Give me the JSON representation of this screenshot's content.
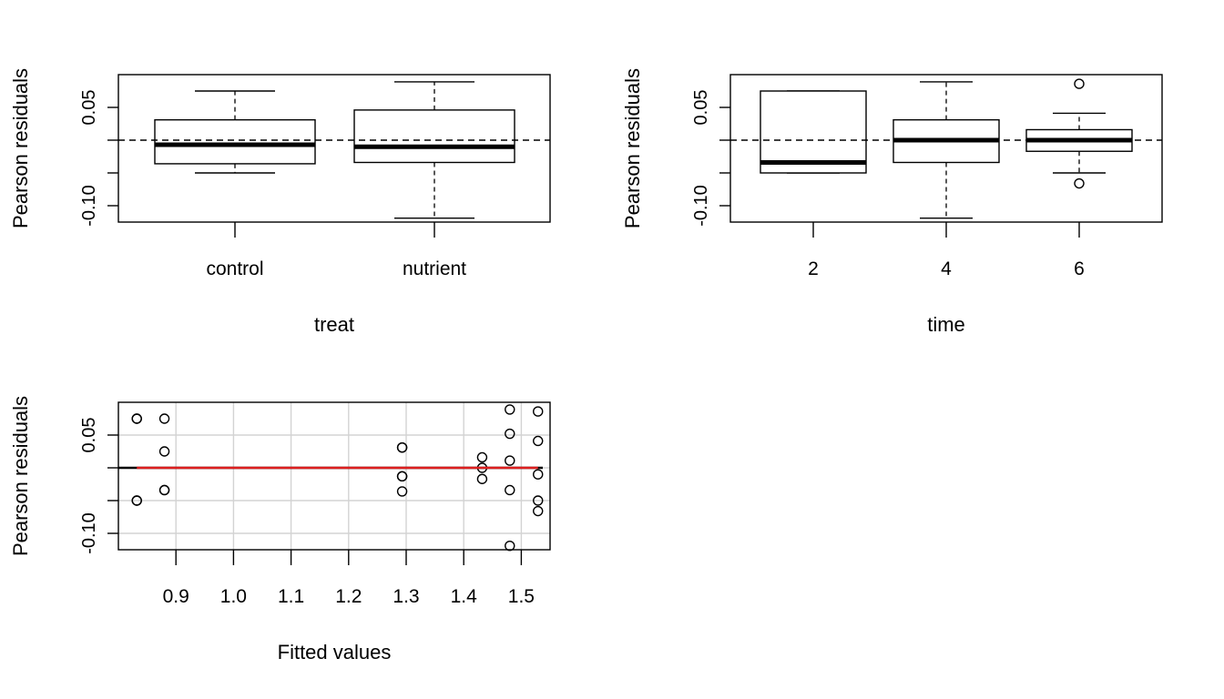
{
  "chart_data": [
    {
      "type": "box",
      "xlabel": "treat",
      "ylabel": "Pearson residuals",
      "ylim": [
        -0.125,
        0.1
      ],
      "y_ticks": [
        "-0.10",
        "0.05"
      ],
      "reference_line": 0,
      "categories": [
        "control",
        "nutrient"
      ],
      "boxes": [
        {
          "category": "control",
          "whisker_low": -0.05,
          "q1": -0.036,
          "median": -0.007,
          "q3": 0.031,
          "whisker_high": 0.075,
          "outliers": []
        },
        {
          "category": "nutrient",
          "whisker_low": -0.119,
          "q1": -0.034,
          "median": -0.01,
          "q3": 0.046,
          "whisker_high": 0.089,
          "outliers": []
        }
      ]
    },
    {
      "type": "box",
      "xlabel": "time",
      "ylabel": "Pearson residuals",
      "ylim": [
        -0.125,
        0.1
      ],
      "y_ticks": [
        "-0.10",
        "0.05"
      ],
      "reference_line": 0,
      "categories": [
        "2",
        "4",
        "6"
      ],
      "boxes": [
        {
          "category": "2",
          "whisker_low": -0.05,
          "q1": -0.05,
          "median": -0.034,
          "q3": 0.075,
          "whisker_high": 0.075,
          "outliers": []
        },
        {
          "category": "4",
          "whisker_low": -0.119,
          "q1": -0.034,
          "median": 0.0,
          "q3": 0.031,
          "whisker_high": 0.089,
          "outliers": []
        },
        {
          "category": "6",
          "whisker_low": -0.05,
          "q1": -0.017,
          "median": 0.0,
          "q3": 0.016,
          "whisker_high": 0.041,
          "outliers": [
            0.086,
            -0.066
          ]
        }
      ]
    },
    {
      "type": "scatter",
      "xlabel": "Fitted values",
      "ylabel": "Pearson residuals",
      "xlim": [
        0.8,
        1.55
      ],
      "ylim": [
        -0.125,
        0.1
      ],
      "x_ticks": [
        "0.9",
        "1.0",
        "1.1",
        "1.2",
        "1.3",
        "1.4",
        "1.5"
      ],
      "y_ticks": [
        "-0.10",
        "0.05"
      ],
      "grid": true,
      "reference_line": 0,
      "points": [
        [
          0.832,
          0.075
        ],
        [
          0.832,
          0.075
        ],
        [
          0.832,
          -0.05
        ],
        [
          0.832,
          -0.05
        ],
        [
          0.88,
          0.075
        ],
        [
          0.88,
          0.025
        ],
        [
          0.88,
          -0.034
        ],
        [
          0.88,
          -0.034
        ],
        [
          1.293,
          0.031
        ],
        [
          1.293,
          0.031
        ],
        [
          1.293,
          -0.013
        ],
        [
          1.293,
          -0.013
        ],
        [
          1.293,
          -0.036
        ],
        [
          1.432,
          0.016
        ],
        [
          1.432,
          0.0
        ],
        [
          1.432,
          -0.017
        ],
        [
          1.48,
          0.089
        ],
        [
          1.48,
          0.052
        ],
        [
          1.48,
          0.011
        ],
        [
          1.48,
          -0.034
        ],
        [
          1.48,
          -0.119
        ],
        [
          1.529,
          0.086
        ],
        [
          1.529,
          0.041
        ],
        [
          1.529,
          -0.01
        ],
        [
          1.529,
          -0.05
        ],
        [
          1.529,
          -0.066
        ]
      ],
      "smooth_line": {
        "color": "#dd1f1f",
        "x": [
          0.832,
          1.529
        ],
        "y": [
          0.0,
          0.0
        ]
      }
    }
  ]
}
